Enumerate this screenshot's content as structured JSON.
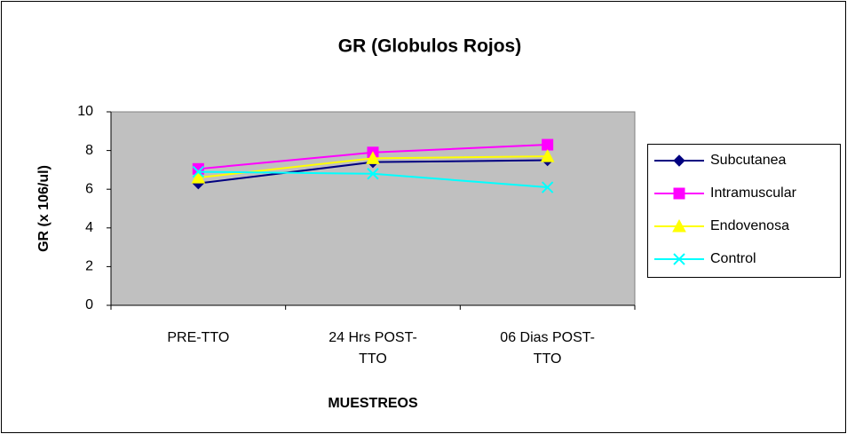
{
  "chart_data": {
    "type": "line",
    "title": "GR (Globulos Rojos)",
    "x_label": "MUESTREOS",
    "y_label": "GR (x 106/ul)",
    "categories": [
      "PRE-TTO",
      "24 Hrs POST-TTO",
      "06 Dias POST-TTO"
    ],
    "series": [
      {
        "name": "Subcutanea",
        "color": "#000080",
        "marker": "diamond",
        "values": [
          6.3,
          7.4,
          7.5
        ]
      },
      {
        "name": "Intramuscular",
        "color": "#ff00ff",
        "marker": "square",
        "values": [
          7.05,
          7.9,
          8.3
        ]
      },
      {
        "name": "Endovenosa",
        "color": "#ffff00",
        "marker": "triangle",
        "values": [
          6.6,
          7.6,
          7.7
        ]
      },
      {
        "name": "Control",
        "color": "#00ffff",
        "marker": "x",
        "values": [
          6.9,
          6.8,
          6.1
        ]
      }
    ],
    "ylim": [
      0,
      10
    ],
    "yticks": [
      0,
      2,
      4,
      6,
      8,
      10
    ],
    "grid": false,
    "legend": "right"
  }
}
